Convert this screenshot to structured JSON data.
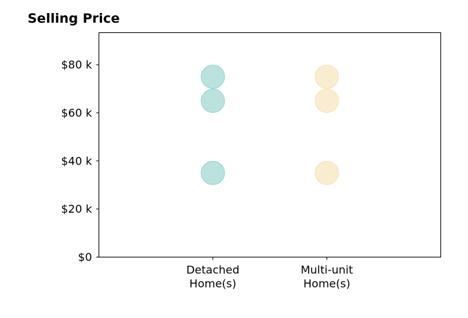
{
  "chart_data": {
    "type": "scatter",
    "title": "Selling Price",
    "xlabel": "",
    "ylabel": "",
    "categories": [
      "Detached\nHome(s)",
      "Multi-unit\nHome(s)"
    ],
    "x_padding": 1,
    "ylim": [
      0,
      93333
    ],
    "y_ticks": [
      0,
      20000,
      40000,
      60000,
      80000
    ],
    "y_tick_labels": [
      "$0",
      "$20 k",
      "$40 k",
      "$60 k",
      "$80 k"
    ],
    "series": [
      {
        "color": "#8ecfca",
        "points": [
          {
            "category": "Detached\nHome(s)",
            "value": 75000
          },
          {
            "category": "Detached\nHome(s)",
            "value": 65000
          },
          {
            "category": "Detached\nHome(s)",
            "value": 35000
          }
        ]
      },
      {
        "color": "#f7dfb0",
        "points": [
          {
            "category": "Multi-unit\nHome(s)",
            "value": 75000
          },
          {
            "category": "Multi-unit\nHome(s)",
            "value": 65000
          },
          {
            "category": "Multi-unit\nHome(s)",
            "value": 35000
          }
        ]
      }
    ],
    "grid": false,
    "legend": "none",
    "marker_alpha": 0.6
  }
}
